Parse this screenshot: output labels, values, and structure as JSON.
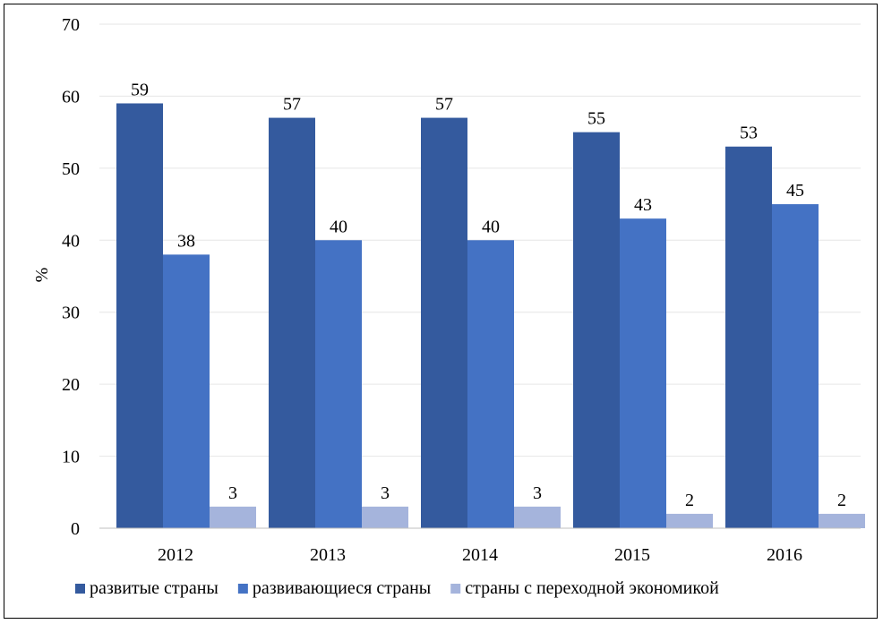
{
  "chart_data": {
    "type": "bar",
    "title": "",
    "xlabel": "",
    "ylabel": "%",
    "ylim": [
      0,
      70
    ],
    "yticks": [
      0,
      10,
      20,
      30,
      40,
      50,
      60,
      70
    ],
    "grid": true,
    "legend_position": "bottom",
    "categories": [
      "2012",
      "2013",
      "2014",
      "2015",
      "2016"
    ],
    "series": [
      {
        "name": "развитые страны",
        "color": "#345a9e",
        "values": [
          59,
          57,
          57,
          55,
          53
        ]
      },
      {
        "name": "развивающиеся страны",
        "color": "#4472c4",
        "values": [
          38,
          40,
          40,
          43,
          45
        ]
      },
      {
        "name": "страны с переходной экономикой",
        "color": "#a5b4dc",
        "values": [
          3,
          3,
          3,
          2,
          2
        ]
      }
    ]
  }
}
